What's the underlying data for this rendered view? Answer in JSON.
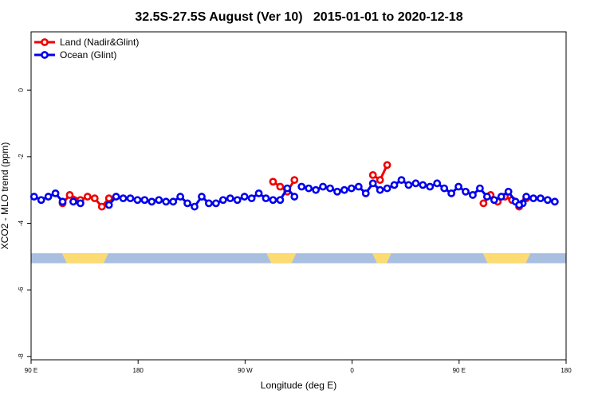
{
  "chart_data": {
    "type": "line",
    "title": "32.5S-27.5S August (Ver 10)   2015-01-01 to 2020-12-18",
    "xlabel": "Longitude (deg E)",
    "ylabel": "XCO2 - MLO trend (ppm)",
    "x_ticks": [
      {
        "value": 90,
        "label": "90 E"
      },
      {
        "value": 180,
        "label": "180"
      },
      {
        "value": 270,
        "label": "90 W"
      },
      {
        "value": 360,
        "label": "0"
      },
      {
        "value": 450,
        "label": "90 E"
      },
      {
        "value": 540,
        "label": "180"
      }
    ],
    "y_ticks": [
      {
        "value": 0,
        "label": "0"
      },
      {
        "value": -2,
        "label": "-2"
      },
      {
        "value": -4,
        "label": "-4"
      },
      {
        "value": -6,
        "label": "-6"
      },
      {
        "value": -8,
        "label": "-8"
      }
    ],
    "xlim": [
      90,
      540
    ],
    "ylim": [
      -8.1,
      1.75
    ],
    "grid": false,
    "legend_position": "top-left",
    "land_mask": {
      "y_range": [
        -5.2,
        -4.9
      ],
      "ocean_color": "#a9bfe0",
      "land_color": "#fcdb73",
      "land_segments": [
        [
          116,
          155
        ],
        [
          288,
          313
        ],
        [
          377,
          393
        ],
        [
          470,
          510
        ]
      ]
    },
    "series": [
      {
        "name": "Land (Nadir&Glint)",
        "color": "#ee0000",
        "segments": [
          [
            [
              116.5,
              -3.4
            ],
            [
              122.5,
              -3.15
            ],
            [
              131.5,
              -3.3
            ],
            [
              137.5,
              -3.2
            ],
            [
              143.5,
              -3.25
            ],
            [
              149.5,
              -3.5
            ],
            [
              155.5,
              -3.25
            ]
          ],
          [
            [
              293.5,
              -2.75
            ],
            [
              299.5,
              -2.9
            ],
            [
              305.5,
              -3.05
            ],
            [
              311.5,
              -2.7
            ]
          ],
          [
            [
              377.5,
              -2.55
            ],
            [
              383.5,
              -2.7
            ],
            [
              389.5,
              -2.25
            ]
          ],
          [
            [
              470.5,
              -3.4
            ],
            [
              476.5,
              -3.15
            ],
            [
              482.5,
              -3.35
            ],
            [
              488.5,
              -3.2
            ],
            [
              494.5,
              -3.3
            ],
            [
              500.5,
              -3.5
            ],
            [
              506.5,
              -3.25
            ]
          ]
        ]
      },
      {
        "name": "Ocean (Glint)",
        "color": "#0000ee",
        "segments": [
          [
            [
              92.5,
              -3.2
            ],
            [
              98.5,
              -3.3
            ],
            [
              104.5,
              -3.2
            ],
            [
              110.5,
              -3.1
            ],
            [
              116.5,
              -3.35
            ]
          ],
          [
            [
              125.5,
              -3.35
            ],
            [
              131.5,
              -3.4
            ]
          ],
          [
            [
              155.5,
              -3.45
            ],
            [
              161.5,
              -3.2
            ],
            [
              167.5,
              -3.25
            ],
            [
              173.5,
              -3.25
            ],
            [
              179.5,
              -3.3
            ],
            [
              185.5,
              -3.3
            ],
            [
              191.5,
              -3.35
            ],
            [
              197.5,
              -3.3
            ],
            [
              203.5,
              -3.35
            ],
            [
              209.5,
              -3.35
            ],
            [
              215.5,
              -3.2
            ],
            [
              221.5,
              -3.4
            ],
            [
              227.5,
              -3.5
            ],
            [
              233.5,
              -3.2
            ],
            [
              239.5,
              -3.4
            ],
            [
              245.5,
              -3.4
            ],
            [
              251.5,
              -3.3
            ],
            [
              257.5,
              -3.25
            ],
            [
              263.5,
              -3.3
            ],
            [
              269.5,
              -3.2
            ],
            [
              275.5,
              -3.25
            ],
            [
              281.5,
              -3.1
            ],
            [
              287.5,
              -3.25
            ],
            [
              293.5,
              -3.3
            ],
            [
              299.5,
              -3.3
            ],
            [
              305.5,
              -2.95
            ],
            [
              311.5,
              -3.2
            ]
          ],
          [
            [
              317.5,
              -2.9
            ],
            [
              323.5,
              -2.95
            ],
            [
              329.5,
              -3.0
            ],
            [
              335.5,
              -2.9
            ],
            [
              341.5,
              -2.95
            ],
            [
              347.5,
              -3.05
            ],
            [
              353.5,
              -3.0
            ],
            [
              359.5,
              -2.95
            ],
            [
              365.5,
              -2.9
            ],
            [
              371.5,
              -3.1
            ],
            [
              377.5,
              -2.8
            ],
            [
              383.5,
              -3.0
            ],
            [
              389.5,
              -2.95
            ],
            [
              395.5,
              -2.85
            ],
            [
              401.5,
              -2.7
            ],
            [
              407.5,
              -2.85
            ],
            [
              413.5,
              -2.8
            ],
            [
              419.5,
              -2.85
            ],
            [
              425.5,
              -2.9
            ],
            [
              431.5,
              -2.8
            ],
            [
              437.5,
              -2.95
            ],
            [
              443.5,
              -3.1
            ],
            [
              449.5,
              -2.9
            ],
            [
              455.5,
              -3.05
            ],
            [
              461.5,
              -3.15
            ],
            [
              467.5,
              -2.95
            ],
            [
              473.5,
              -3.2
            ],
            [
              479.5,
              -3.3
            ],
            [
              485.5,
              -3.2
            ],
            [
              491.5,
              -3.05
            ],
            [
              497.5,
              -3.35
            ],
            [
              503.5,
              -3.4
            ]
          ],
          [
            [
              500.5,
              -3.45
            ],
            [
              506.5,
              -3.2
            ],
            [
              512.5,
              -3.25
            ],
            [
              518.5,
              -3.25
            ],
            [
              524.5,
              -3.3
            ],
            [
              530.5,
              -3.35
            ]
          ]
        ]
      }
    ]
  }
}
